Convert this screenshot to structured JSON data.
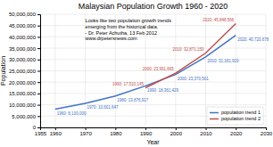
{
  "chart_data": {
    "type": "line",
    "title": "Malaysian Population Growth 1960 - 2020",
    "xlabel": "Year",
    "ylabel": "Population",
    "annotation": [
      "Looks like two population growth trends",
      "emerging from the historical data.",
      "- Dr. Peter Achutha, 13 Feb 2012",
      "www.drpetersnews.com"
    ],
    "x": [
      1960,
      1970,
      1980,
      1990,
      2000,
      2010,
      2020
    ],
    "series": [
      {
        "name": "population trend 1",
        "color": "#4472C4",
        "values": [
          8100000,
          10601647,
          13876917,
          18361429,
          23370501,
          31161919,
          40720678
        ],
        "value_labels": [
          "1960: 8,100,000",
          "1970: 10,601,647",
          "1980: 13,876,917",
          "1990: 18,361,429",
          "2000: 23,370,501",
          "2010: 31,161,919",
          "2020: 40,720,678"
        ]
      },
      {
        "name": "population trend 2",
        "color": "#C0504D",
        "values": [
          null,
          null,
          null,
          17510145,
          23991665,
          32871150,
          45848566
        ],
        "value_labels": [
          null,
          null,
          null,
          "1990: 17,510,145",
          "2000: 23,991,665",
          "2010: 32,871,150",
          "2020: 45,848,566"
        ]
      }
    ],
    "xlim": [
      1955,
      2030
    ],
    "ylim": [
      0,
      50000000
    ],
    "xticks": [
      1955,
      1960,
      1970,
      1980,
      1990,
      2000,
      2010,
      2020,
      2030
    ],
    "yticks": [
      0,
      {
        "value": 5000000,
        "label": "5,000,000"
      },
      {
        "value": 10000000,
        "label": "10,000,000"
      },
      {
        "value": 15000000,
        "label": "15,000,000"
      },
      {
        "value": 20000000,
        "label": "20,000,000"
      },
      {
        "value": 25000000,
        "label": "25,000,000"
      },
      {
        "value": 30000000,
        "label": "30,000,000"
      },
      {
        "value": 35000000,
        "label": "35,000,000"
      },
      {
        "value": 40000000,
        "label": "40,000,000"
      },
      {
        "value": 45000000,
        "label": "45,000,000"
      },
      {
        "value": 50000000,
        "label": "50,000,000"
      }
    ],
    "grid": true,
    "legend": "lower right",
    "data_labels": true
  }
}
